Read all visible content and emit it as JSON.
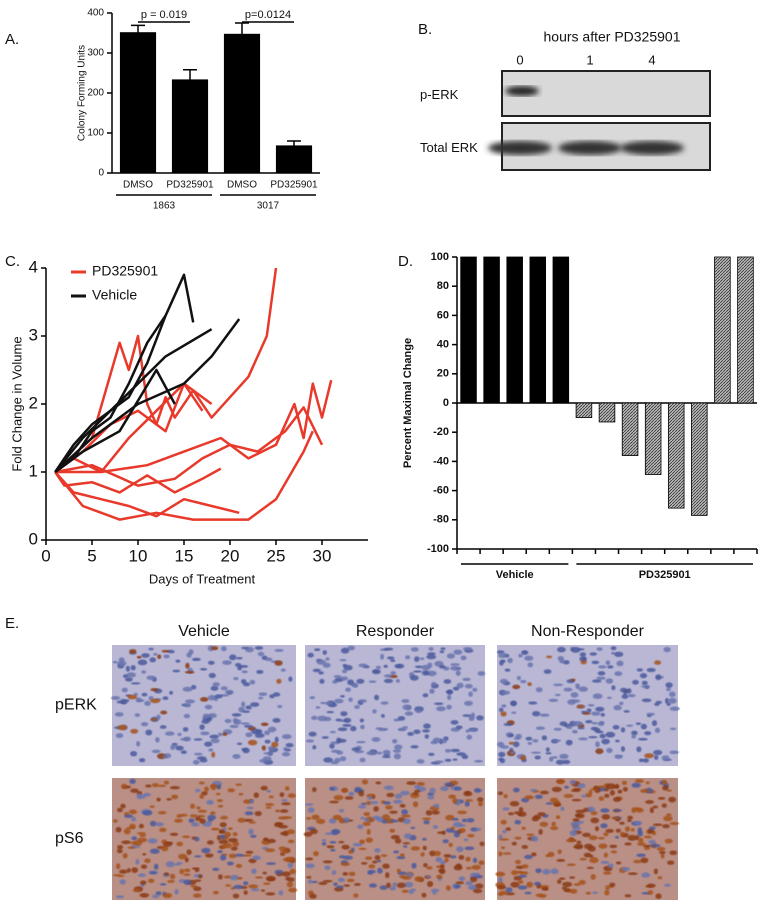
{
  "chart_data": [
    {
      "type": "bar",
      "panel_label": "A.",
      "y_label": "Colony Forming Units",
      "categories": [
        "DMSO",
        "PD325901",
        "DMSO",
        "PD325901"
      ],
      "groups": [
        {
          "label": "1863",
          "count": 2
        },
        {
          "label": "3017",
          "count": 2
        }
      ],
      "values": [
        351,
        233,
        347,
        68
      ],
      "errors": [
        18,
        25,
        28,
        12
      ],
      "color": "#000000",
      "annotations": [
        {
          "text": "p = 0.019",
          "from": 0,
          "to": 1
        },
        {
          "text": "p=0.0124",
          "from": 2,
          "to": 3
        }
      ],
      "ylim": [
        0,
        400
      ],
      "yticks": [
        0,
        100,
        200,
        300,
        400
      ]
    },
    {
      "type": "line",
      "panel_label": "C.",
      "x_label": "Days of Treatment",
      "y_label": "Fold Change in Volume",
      "series": [
        {
          "name": "PD325901",
          "color": "#e8392b",
          "lines": [
            {
              "x": [
                1,
                5,
                8,
                9,
                10,
                11,
                12,
                13,
                14,
                16,
                18,
                20,
                22,
                24,
                25
              ],
              "values": [
                1,
                1.5,
                2.9,
                2.5,
                3.0,
                2.0,
                1.7,
                2.1,
                1.8,
                2.2,
                1.8,
                2.1,
                2.4,
                3.0,
                4.0
              ]
            },
            {
              "x": [
                1,
                4,
                7,
                10,
                13,
                15,
                17
              ],
              "values": [
                1,
                1.3,
                1.7,
                1.9,
                1.6,
                2.3,
                1.9
              ]
            },
            {
              "x": [
                1,
                3,
                6,
                9,
                12,
                15,
                18
              ],
              "values": [
                1,
                1.2,
                1.0,
                1.5,
                1.9,
                2.3,
                2.0
              ]
            },
            {
              "x": [
                1,
                2,
                5,
                8,
                11,
                14,
                17,
                19
              ],
              "values": [
                1,
                0.8,
                0.85,
                0.7,
                0.95,
                0.7,
                0.9,
                1.05
              ]
            },
            {
              "x": [
                1,
                3,
                6,
                9,
                12,
                15,
                18,
                21
              ],
              "values": [
                1,
                0.7,
                0.6,
                0.5,
                0.35,
                0.6,
                0.5,
                0.4
              ]
            },
            {
              "x": [
                1,
                4,
                8,
                12,
                16,
                20,
                22,
                25,
                28,
                29
              ],
              "values": [
                1,
                0.5,
                0.3,
                0.4,
                0.3,
                0.3,
                0.3,
                0.6,
                1.3,
                1.6
              ]
            },
            {
              "x": [
                1,
                5,
                10,
                14,
                17,
                20,
                23,
                26,
                28,
                30
              ],
              "values": [
                1,
                1.1,
                0.8,
                0.9,
                1.2,
                1.4,
                1.3,
                1.6,
                1.95,
                1.4
              ]
            },
            {
              "x": [
                1,
                6,
                11,
                15,
                19,
                22,
                25,
                27,
                28,
                29,
                30,
                31
              ],
              "values": [
                1,
                1.0,
                1.1,
                1.3,
                1.5,
                1.2,
                1.4,
                2.0,
                1.5,
                2.3,
                1.8,
                2.35
              ]
            }
          ]
        },
        {
          "name": "Vehicle",
          "color": "#111111",
          "lines": [
            {
              "x": [
                1,
                3,
                5,
                7,
                9,
                11,
                13,
                14,
                15,
                16
              ],
              "values": [
                1,
                1.4,
                1.7,
                1.9,
                2.1,
                2.6,
                3.3,
                3.6,
                3.9,
                3.2
              ]
            },
            {
              "x": [
                1,
                4,
                7,
                10,
                13,
                18
              ],
              "values": [
                1,
                1.5,
                1.9,
                2.3,
                2.7,
                3.1
              ]
            },
            {
              "x": [
                1,
                5,
                10,
                15,
                18,
                21
              ],
              "values": [
                1,
                1.5,
                2.0,
                2.3,
                2.7,
                3.25
              ]
            },
            {
              "x": [
                1,
                3,
                5,
                7,
                9,
                11,
                13
              ],
              "values": [
                1,
                1.2,
                1.6,
                1.8,
                2.3,
                2.9,
                3.3
              ]
            },
            {
              "x": [
                1,
                4,
                8,
                12,
                14
              ],
              "values": [
                1,
                1.3,
                1.6,
                2.5,
                2.0
              ]
            }
          ]
        }
      ],
      "xlim": [
        0,
        35
      ],
      "xticks": [
        0,
        5,
        10,
        15,
        20,
        25,
        30
      ],
      "ylim": [
        0,
        4
      ],
      "yticks": [
        0,
        1,
        2,
        3,
        4
      ]
    },
    {
      "type": "bar",
      "panel_label": "D.",
      "y_label": "Percent Maximal Change",
      "categories": [
        null,
        null,
        null,
        null,
        null,
        null,
        null,
        null,
        null,
        null,
        null,
        null,
        null
      ],
      "groups": [
        {
          "label": "Vehicle",
          "count": 5,
          "fill": "solid"
        },
        {
          "label": "PD325901",
          "count": 8,
          "fill": "hatched"
        }
      ],
      "values": [
        100,
        100,
        100,
        100,
        100,
        -10,
        -13,
        -36,
        -49,
        -72,
        -77,
        100,
        100
      ],
      "color": "#000000",
      "ylim": [
        -100,
        100
      ],
      "yticks": [
        -100,
        -80,
        -60,
        -40,
        -20,
        0,
        20,
        40,
        60,
        80,
        100
      ]
    }
  ],
  "blot": {
    "panel_label": "B.",
    "title": "hours after PD325901",
    "lanes": [
      "0",
      "1",
      "4"
    ],
    "rows": [
      "p-ERK",
      "Total ERK"
    ]
  },
  "histology": {
    "panel_label": "E.",
    "columns": [
      "Vehicle",
      "Responder",
      "Non-Responder"
    ],
    "rows": [
      "pERK",
      "pS6"
    ]
  }
}
